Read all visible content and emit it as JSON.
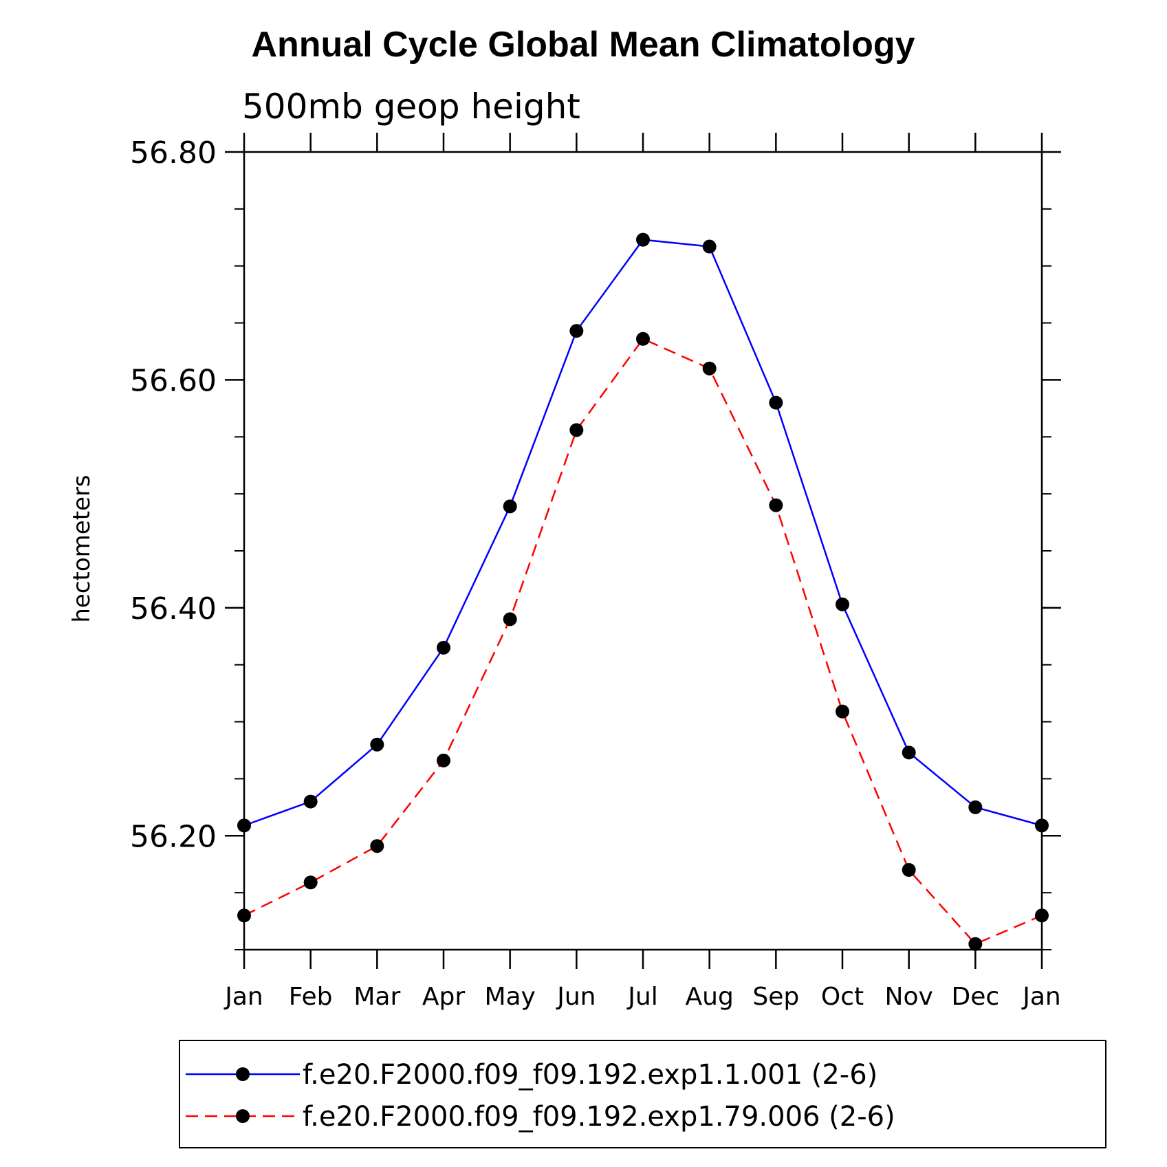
{
  "chart_data": {
    "type": "line",
    "title": "Annual Cycle Global Mean Climatology",
    "subtitle": "500mb geop height",
    "ylabel": "hectometers",
    "xlabel": "",
    "categories": [
      "Jan",
      "Feb",
      "Mar",
      "Apr",
      "May",
      "Jun",
      "Jul",
      "Aug",
      "Sep",
      "Oct",
      "Nov",
      "Dec",
      "Jan"
    ],
    "ylim": [
      56.1,
      56.8
    ],
    "yticks": [
      56.2,
      56.4,
      56.6,
      56.8
    ],
    "ytick_labels": [
      "56.20",
      "56.40",
      "56.60",
      "56.80"
    ],
    "yminor_step": 0.05,
    "grid": false,
    "legend_position": "bottom",
    "series": [
      {
        "name": "f.e20.F2000.f09_f09.192.exp1.1.001 (2-6)",
        "color": "#0000ff",
        "dash": "solid",
        "values": [
          56.209,
          56.23,
          56.28,
          56.365,
          56.489,
          56.643,
          56.723,
          56.717,
          56.58,
          56.403,
          56.273,
          56.225,
          56.209
        ]
      },
      {
        "name": "f.e20.F2000.f09_f09.192.exp1.79.006 (2-6)",
        "color": "#ff0000",
        "dash": "dashed",
        "values": [
          56.13,
          56.159,
          56.191,
          56.266,
          56.39,
          56.556,
          56.636,
          56.61,
          56.49,
          56.309,
          56.17,
          56.105,
          56.13
        ]
      }
    ]
  }
}
